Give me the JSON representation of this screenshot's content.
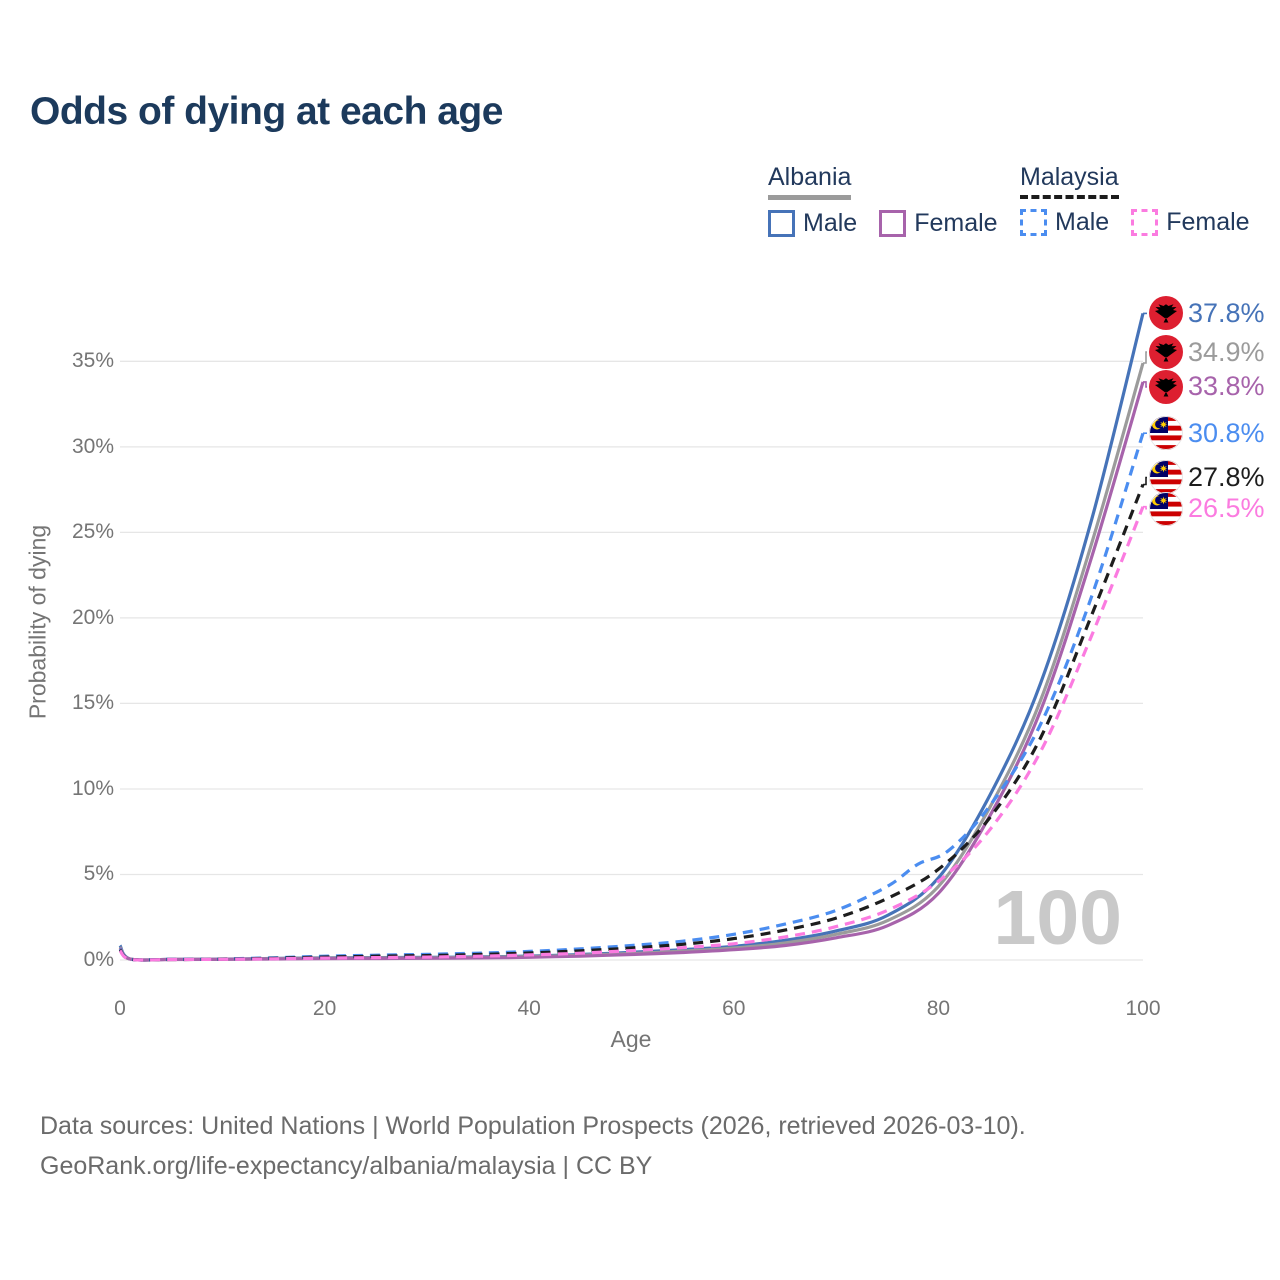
{
  "title": "Odds of dying at each age",
  "watermark": "100",
  "legend": {
    "albania": {
      "label": "Albania",
      "male_label": "Male",
      "female_label": "Female"
    },
    "malaysia": {
      "label": "Malaysia",
      "male_label": "Male",
      "female_label": "Female"
    }
  },
  "footer": {
    "line1": "Data sources: United Nations | World Population Prospects (2026, retrieved 2026-03-10).",
    "line2": "GeoRank.org/life-expectancy/albania/malaysia | CC BY"
  },
  "colors": {
    "title": "#1c3a5c",
    "axis_text": "#757575",
    "grid": "#e6e6e6",
    "watermark": "#c9c9c9",
    "albania_male": "#4673b8",
    "albania_total": "#9b9b9b",
    "albania_female": "#a763ab",
    "malaysia_male": "#4b8df0",
    "malaysia_total": "#1d1d1d",
    "malaysia_female": "#fb7be0"
  },
  "chart_data": {
    "type": "line",
    "title": "Odds of dying at each age",
    "xlabel": "Age",
    "ylabel": "Probability of dying",
    "xlim": [
      0,
      100
    ],
    "ylim": [
      0,
      38
    ],
    "x_ticks": [
      0,
      20,
      40,
      60,
      80,
      100
    ],
    "y_ticks": [
      0,
      5,
      10,
      15,
      20,
      25,
      30,
      35
    ],
    "y_tick_labels": [
      "0%",
      "5%",
      "10%",
      "15%",
      "20%",
      "25%",
      "30%",
      "35%"
    ],
    "grid": true,
    "legend_position": "top-right",
    "age_counter_watermark": "100",
    "series": [
      {
        "name": "Albania Male",
        "country": "Albania",
        "sex": "male",
        "flag": "albania",
        "color": "#4673b8",
        "dash": false,
        "end_label": "37.8%",
        "points": [
          [
            0,
            0.85
          ],
          [
            1,
            0.06
          ],
          [
            5,
            0.04
          ],
          [
            10,
            0.05
          ],
          [
            15,
            0.09
          ],
          [
            20,
            0.13
          ],
          [
            25,
            0.14
          ],
          [
            30,
            0.15
          ],
          [
            35,
            0.18
          ],
          [
            40,
            0.23
          ],
          [
            45,
            0.32
          ],
          [
            50,
            0.45
          ],
          [
            55,
            0.6
          ],
          [
            60,
            0.8
          ],
          [
            65,
            1.15
          ],
          [
            70,
            1.7
          ],
          [
            75,
            2.6
          ],
          [
            80,
            4.8
          ],
          [
            85,
            9.6
          ],
          [
            90,
            16.2
          ],
          [
            95,
            25.8
          ],
          [
            100,
            37.8
          ]
        ]
      },
      {
        "name": "Albania Both sexes",
        "country": "Albania",
        "sex": "both",
        "flag": "albania",
        "color": "#9b9b9b",
        "dash": false,
        "end_label": "34.9%",
        "points": [
          [
            0,
            0.75
          ],
          [
            1,
            0.05
          ],
          [
            5,
            0.04
          ],
          [
            10,
            0.04
          ],
          [
            15,
            0.08
          ],
          [
            20,
            0.11
          ],
          [
            25,
            0.12
          ],
          [
            30,
            0.13
          ],
          [
            35,
            0.15
          ],
          [
            40,
            0.2
          ],
          [
            45,
            0.28
          ],
          [
            50,
            0.38
          ],
          [
            55,
            0.52
          ],
          [
            60,
            0.7
          ],
          [
            65,
            1.0
          ],
          [
            70,
            1.5
          ],
          [
            75,
            2.3
          ],
          [
            80,
            4.3
          ],
          [
            85,
            8.9
          ],
          [
            90,
            15.2
          ],
          [
            95,
            24.4
          ],
          [
            100,
            34.9
          ]
        ]
      },
      {
        "name": "Albania Female",
        "country": "Albania",
        "sex": "female",
        "flag": "albania",
        "color": "#a763ab",
        "dash": false,
        "end_label": "33.8%",
        "points": [
          [
            0,
            0.7
          ],
          [
            1,
            0.05
          ],
          [
            5,
            0.03
          ],
          [
            10,
            0.04
          ],
          [
            15,
            0.06
          ],
          [
            20,
            0.08
          ],
          [
            25,
            0.09
          ],
          [
            30,
            0.1
          ],
          [
            35,
            0.12
          ],
          [
            40,
            0.16
          ],
          [
            45,
            0.23
          ],
          [
            50,
            0.32
          ],
          [
            55,
            0.44
          ],
          [
            60,
            0.6
          ],
          [
            65,
            0.85
          ],
          [
            70,
            1.3
          ],
          [
            75,
            2.0
          ],
          [
            80,
            3.9
          ],
          [
            85,
            8.4
          ],
          [
            90,
            14.6
          ],
          [
            95,
            23.6
          ],
          [
            100,
            33.8
          ]
        ]
      },
      {
        "name": "Malaysia Male",
        "country": "Malaysia",
        "sex": "male",
        "flag": "malaysia",
        "color": "#4b8df0",
        "dash": true,
        "end_label": "30.8%",
        "points": [
          [
            0,
            0.65
          ],
          [
            1,
            0.05
          ],
          [
            5,
            0.04
          ],
          [
            10,
            0.06
          ],
          [
            15,
            0.13
          ],
          [
            20,
            0.22
          ],
          [
            25,
            0.28
          ],
          [
            30,
            0.33
          ],
          [
            35,
            0.4
          ],
          [
            40,
            0.5
          ],
          [
            45,
            0.65
          ],
          [
            50,
            0.85
          ],
          [
            55,
            1.1
          ],
          [
            60,
            1.5
          ],
          [
            65,
            2.1
          ],
          [
            70,
            2.9
          ],
          [
            75,
            4.3
          ],
          [
            78,
            5.6
          ],
          [
            81,
            6.4
          ],
          [
            85,
            9.0
          ],
          [
            90,
            13.8
          ],
          [
            95,
            21.3
          ],
          [
            100,
            30.8
          ]
        ]
      },
      {
        "name": "Malaysia Both sexes",
        "country": "Malaysia",
        "sex": "both",
        "flag": "malaysia",
        "color": "#1d1d1d",
        "dash": true,
        "end_label": "27.8%",
        "points": [
          [
            0,
            0.6
          ],
          [
            1,
            0.05
          ],
          [
            5,
            0.03
          ],
          [
            10,
            0.05
          ],
          [
            15,
            0.1
          ],
          [
            20,
            0.17
          ],
          [
            25,
            0.22
          ],
          [
            30,
            0.26
          ],
          [
            35,
            0.32
          ],
          [
            40,
            0.41
          ],
          [
            45,
            0.54
          ],
          [
            50,
            0.7
          ],
          [
            55,
            0.92
          ],
          [
            60,
            1.25
          ],
          [
            65,
            1.75
          ],
          [
            70,
            2.45
          ],
          [
            75,
            3.6
          ],
          [
            80,
            5.3
          ],
          [
            85,
            8.3
          ],
          [
            90,
            13.0
          ],
          [
            95,
            20.2
          ],
          [
            100,
            27.8
          ]
        ]
      },
      {
        "name": "Malaysia Female",
        "country": "Malaysia",
        "sex": "female",
        "flag": "malaysia",
        "color": "#fb7be0",
        "dash": true,
        "end_label": "26.5%",
        "points": [
          [
            0,
            0.55
          ],
          [
            1,
            0.04
          ],
          [
            5,
            0.03
          ],
          [
            10,
            0.04
          ],
          [
            15,
            0.07
          ],
          [
            20,
            0.11
          ],
          [
            25,
            0.14
          ],
          [
            30,
            0.17
          ],
          [
            35,
            0.22
          ],
          [
            40,
            0.3
          ],
          [
            45,
            0.4
          ],
          [
            50,
            0.55
          ],
          [
            55,
            0.72
          ],
          [
            60,
            0.95
          ],
          [
            65,
            1.35
          ],
          [
            70,
            1.95
          ],
          [
            75,
            2.9
          ],
          [
            80,
            4.6
          ],
          [
            85,
            7.6
          ],
          [
            90,
            12.2
          ],
          [
            95,
            19.0
          ],
          [
            100,
            26.5
          ]
        ]
      }
    ]
  }
}
